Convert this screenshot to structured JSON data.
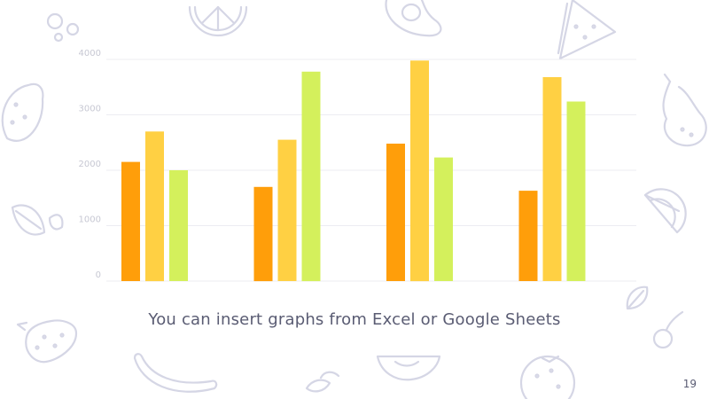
{
  "slide": {
    "caption": "You can insert graphs from Excel or Google Sheets",
    "page_number": "19"
  },
  "colors": {
    "series": [
      "#ff9e0a",
      "#ffd043",
      "#d4f05c"
    ],
    "tick_text": "#c7c8d3",
    "grid": "#ececf2",
    "caption_text": "#5a5c73",
    "doodle_stroke": "#d5d6e5"
  },
  "decorations": [
    "bubbles-icon",
    "orange-slice-icon",
    "avocado-icon",
    "watermelon-icon",
    "lemon-icon",
    "pear-icon",
    "leaves-icon",
    "citrus-slice-icon",
    "leaf-icon",
    "cherry-icon",
    "strawberry-icon",
    "banana-icon",
    "mint-leaves-icon",
    "apple-slice-icon",
    "orange-icon"
  ],
  "chart_data": {
    "type": "bar",
    "categories": [
      "",
      "",
      "",
      ""
    ],
    "series": [
      {
        "values": [
          2150,
          1700,
          2480,
          1630
        ]
      },
      {
        "values": [
          2700,
          2550,
          3980,
          3680
        ]
      },
      {
        "values": [
          2000,
          3780,
          2230,
          3240
        ]
      }
    ],
    "yticks": [
      0,
      1000,
      2000,
      3000,
      4000
    ],
    "ylim": [
      0,
      4000
    ],
    "grid": true,
    "legend": "none"
  }
}
